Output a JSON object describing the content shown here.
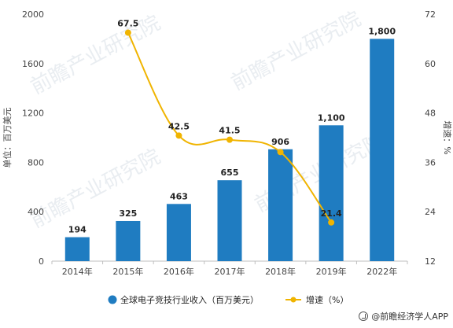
{
  "chart_data": {
    "type": "bar+line",
    "categories": [
      "2014年",
      "2015年",
      "2016年",
      "2017年",
      "2018年",
      "2019年",
      "2022年"
    ],
    "series": [
      {
        "name": "全球电子竞技行业收入（百万美元）",
        "type": "bar",
        "axis": "left",
        "color": "#1f7cc1",
        "values": [
          194,
          325,
          463,
          655,
          906,
          1100,
          1800
        ],
        "labels": [
          "194",
          "325",
          "463",
          "655",
          "906",
          "1,100",
          "1,800"
        ]
      },
      {
        "name": "增速（%）",
        "type": "line",
        "axis": "right",
        "color": "#f0b400",
        "values": [
          null,
          67.5,
          42.5,
          41.5,
          38.5,
          21.4,
          null
        ],
        "labels": [
          "",
          "67.5",
          "42.5",
          "41.5",
          "",
          "21.4",
          ""
        ]
      }
    ],
    "yaxis_left": {
      "label": "单位：百万美元",
      "min": 0,
      "max": 2000,
      "ticks": [
        0,
        400,
        800,
        1200,
        1600,
        2000
      ]
    },
    "yaxis_right": {
      "label": "增速：%",
      "min": 12,
      "max": 72,
      "ticks": [
        12,
        24,
        36,
        48,
        60,
        72
      ]
    },
    "legend_position": "bottom",
    "grid": false
  },
  "watermark": "前瞻产业研究院",
  "credit": "@前瞻经济学人APP"
}
